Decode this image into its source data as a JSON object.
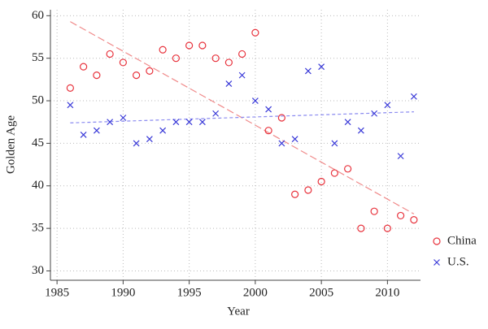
{
  "chart_data": {
    "type": "scatter",
    "xlabel": "Year",
    "ylabel": "Golden Age",
    "xlim": [
      1984.5,
      2012.5
    ],
    "ylim": [
      28.9,
      60.7
    ],
    "xticks": [
      1985,
      1990,
      1995,
      2000,
      2005,
      2010
    ],
    "yticks": [
      30,
      35,
      40,
      45,
      50,
      55,
      60
    ],
    "grid": true,
    "legend": "right",
    "series": [
      {
        "name": "China",
        "color": "#e8323c",
        "marker": "circle",
        "x": [
          1986,
          1987,
          1988,
          1989,
          1990,
          1991,
          1992,
          1993,
          1994,
          1995,
          1996,
          1997,
          1998,
          1999,
          2000,
          2001,
          2002,
          2003,
          2004,
          2005,
          2006,
          2007,
          2008,
          2009,
          2010,
          2011,
          2012
        ],
        "values": [
          51.5,
          54,
          53,
          55.5,
          54.5,
          53,
          53.5,
          56,
          55,
          56.5,
          56.5,
          55,
          54.5,
          55.5,
          58,
          46.5,
          48,
          39,
          39.5,
          40.5,
          41.5,
          42,
          35,
          37,
          35,
          36.5,
          36
        ],
        "trend": {
          "color": "#f08a8a",
          "x": [
            1986,
            2012
          ],
          "values": [
            59.3,
            36.7
          ]
        }
      },
      {
        "name": "U.S.",
        "color": "#3a3ad8",
        "marker": "x",
        "x": [
          1986,
          1987,
          1988,
          1989,
          1990,
          1991,
          1992,
          1993,
          1994,
          1995,
          1996,
          1997,
          1998,
          1999,
          2000,
          2001,
          2002,
          2003,
          2004,
          2005,
          2006,
          2007,
          2008,
          2009,
          2010,
          2011,
          2012
        ],
        "values": [
          49.5,
          46,
          46.5,
          47.5,
          48,
          45,
          45.5,
          46.5,
          47.5,
          47.5,
          47.5,
          48.5,
          52,
          53,
          50,
          49,
          45,
          45.5,
          53.5,
          54,
          45,
          47.5,
          46.5,
          48.5,
          49.5,
          43.5,
          50.5
        ],
        "trend": {
          "color": "#8a8af0",
          "x": [
            1986,
            2012
          ],
          "values": [
            47.4,
            48.7
          ]
        }
      }
    ]
  }
}
